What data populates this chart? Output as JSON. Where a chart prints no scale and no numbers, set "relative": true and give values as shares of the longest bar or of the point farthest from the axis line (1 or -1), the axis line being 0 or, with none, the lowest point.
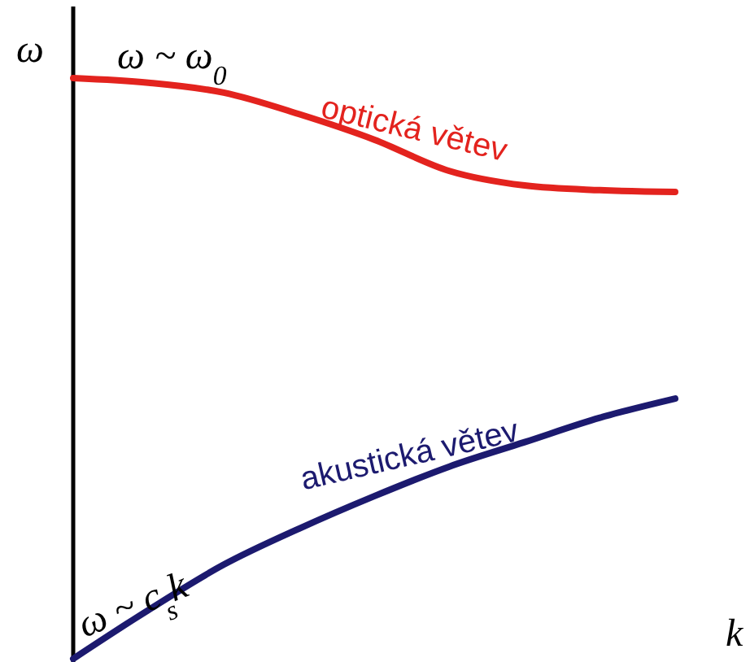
{
  "chart_data": {
    "type": "line",
    "relative": true,
    "xlabel": "k",
    "ylabel": "ω",
    "marker": "none",
    "line_style": "solid",
    "categories": [
      null,
      null,
      null,
      null,
      null,
      null,
      null,
      null,
      null
    ],
    "series": [
      {
        "name": "optická větev",
        "color": "#e3231e",
        "values": [
          1,
          0.992,
          0.975,
          0.938,
          0.894,
          0.84,
          0.815,
          0.807,
          0.804
        ]
      },
      {
        "name": "akustická větev",
        "color": "#1c1a6f",
        "values": [
          0,
          0.084,
          0.162,
          0.224,
          0.28,
          0.331,
          0.373,
          0.415,
          0.448
        ]
      }
    ],
    "annotations": [
      "ω ~ ω$_{0}$",
      "ω ~ c$_{s}$k"
    ]
  }
}
